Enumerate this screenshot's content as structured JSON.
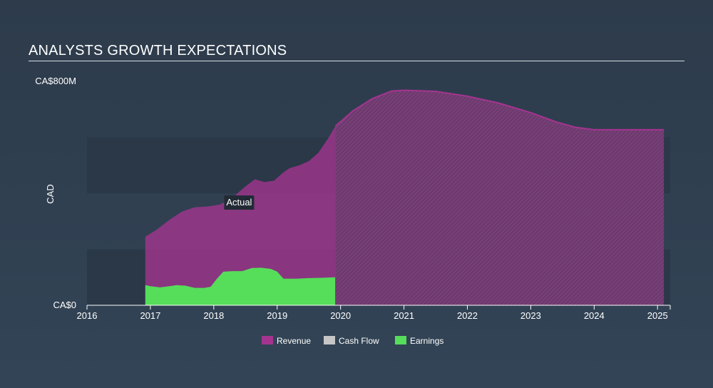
{
  "title": "ANALYSTS GROWTH EXPECTATIONS",
  "chart_data": {
    "type": "area",
    "title": "ANALYSTS GROWTH EXPECTATIONS",
    "ylabel": "CAD",
    "xlabel": "",
    "xlim": [
      2016,
      2025.2
    ],
    "ylim": [
      0,
      800
    ],
    "y_tick_labels": {
      "top": "CA$800M",
      "bottom": "CA$0"
    },
    "x_ticks": [
      2016,
      2017,
      2018,
      2019,
      2020,
      2021,
      2022,
      2023,
      2024,
      2025
    ],
    "x_tick_labels": [
      "2016",
      "2017",
      "2018",
      "2019",
      "2020",
      "2021",
      "2022",
      "2023",
      "2024",
      "2025"
    ],
    "actual_label": "Actual",
    "actual_label_at": 2018.4,
    "forecast_start": 2019.92,
    "colors": {
      "revenue": "#a53490",
      "cash_flow": "#c6c6c6",
      "earnings": "#56dd5a"
    },
    "series": [
      {
        "name": "Revenue",
        "x": [
          2016.92,
          2017.1,
          2017.3,
          2017.5,
          2017.7,
          2017.9,
          2018.1,
          2018.3,
          2018.5,
          2018.65,
          2018.8,
          2018.95,
          2019.1,
          2019.2,
          2019.35,
          2019.5,
          2019.65,
          2019.8,
          2019.92,
          2020.2,
          2020.5,
          2020.8,
          2021.0,
          2021.5,
          2022.0,
          2022.5,
          2023.0,
          2023.4,
          2023.7,
          2024.0,
          2024.5,
          2025.0,
          2025.1
        ],
        "values": [
          245,
          270,
          305,
          335,
          350,
          353,
          360,
          385,
          425,
          450,
          440,
          445,
          475,
          490,
          500,
          515,
          545,
          595,
          640,
          695,
          738,
          765,
          768,
          764,
          747,
          722,
          688,
          655,
          636,
          627,
          627,
          627,
          627
        ]
      },
      {
        "name": "Cash Flow",
        "x": [],
        "values": []
      },
      {
        "name": "Earnings",
        "x": [
          2016.92,
          2017.0,
          2017.15,
          2017.3,
          2017.42,
          2017.55,
          2017.7,
          2017.85,
          2017.95,
          2018.05,
          2018.15,
          2018.3,
          2018.45,
          2018.6,
          2018.75,
          2018.9,
          2019.0,
          2019.1,
          2019.3,
          2019.5,
          2019.7,
          2019.92
        ],
        "values": [
          72,
          68,
          64,
          68,
          72,
          70,
          62,
          62,
          66,
          95,
          120,
          122,
          122,
          133,
          134,
          130,
          120,
          95,
          95,
          97,
          98,
          100
        ]
      }
    ],
    "legend": [
      "Revenue",
      "Cash Flow",
      "Earnings"
    ]
  }
}
